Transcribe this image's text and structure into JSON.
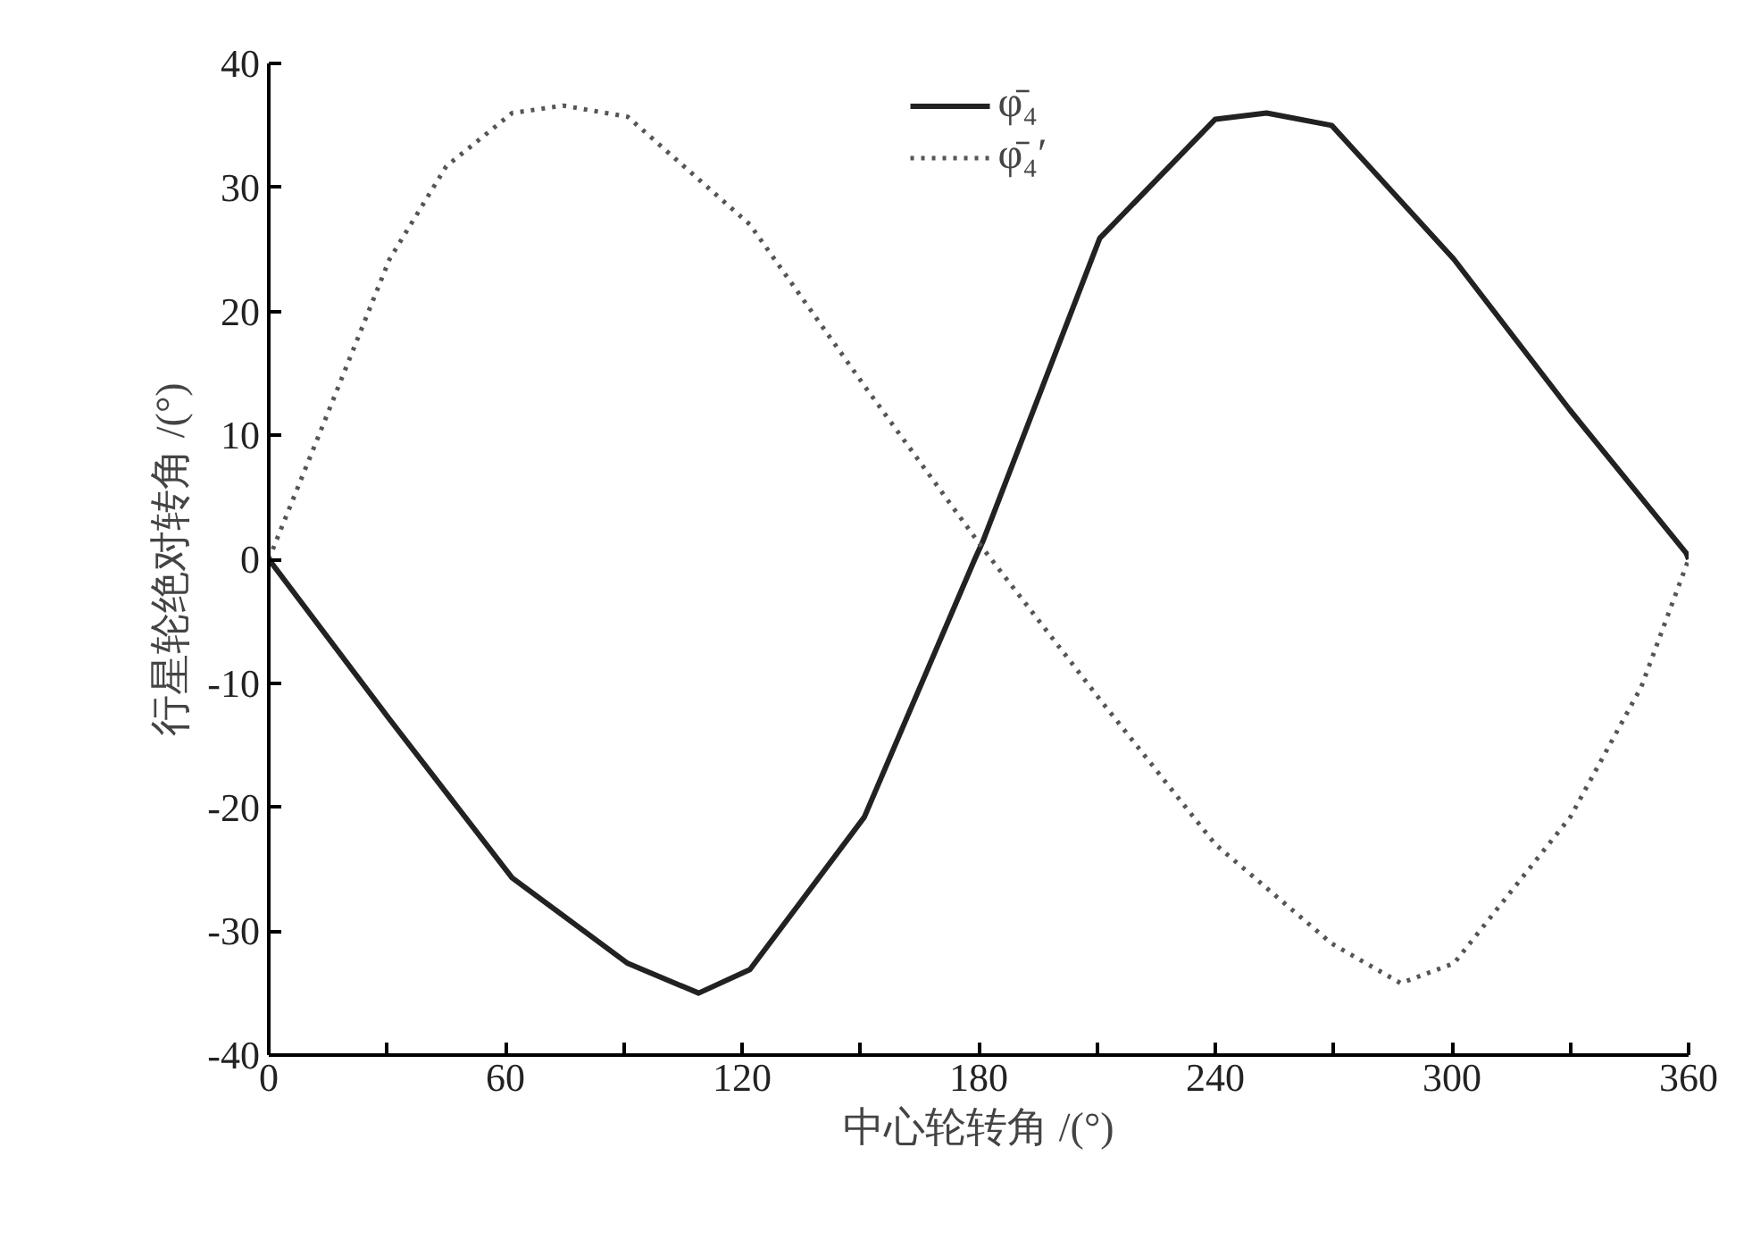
{
  "chart_data": {
    "type": "line",
    "xlabel": "中心轮转角 /(°)",
    "ylabel": "行星轮绝对转角 /(°)",
    "xlim": [
      0,
      360
    ],
    "xticks": [
      0,
      {
        "value": 30,
        "label": null
      },
      60,
      {
        "value": 90,
        "label": null
      },
      120,
      {
        "value": 150,
        "label": null
      },
      180,
      {
        "value": 210,
        "label": null
      },
      240,
      {
        "value": 270,
        "label": null
      },
      300,
      {
        "value": 330,
        "label": null
      },
      360
    ],
    "ylim": [
      -40,
      40
    ],
    "yticks": [
      -40,
      -30,
      -20,
      -10,
      0,
      10,
      20,
      30,
      40
    ],
    "grid": false,
    "legend": "top",
    "marker": "none",
    "series": [
      {
        "name": "φ̄₄",
        "color": "#222222",
        "line_style": "solid",
        "x": [
          0,
          30.6,
          61.7,
          91,
          109,
          122,
          151,
          179,
          181,
          210.7,
          240,
          253,
          269.5,
          300.5,
          330,
          359.4,
          360
        ],
        "values": [
          0,
          -12.9,
          -25.7,
          -32.6,
          -35,
          -33.1,
          -20.8,
          0,
          1.4,
          25.9,
          35.5,
          36,
          35,
          24.2,
          12,
          0.5,
          0
        ]
      },
      {
        "name": "φ̄₄′",
        "color": "#555555",
        "line_style": "dotted",
        "x": [
          0,
          12.7,
          30.6,
          45,
          61.7,
          74.6,
          91,
          122,
          151,
          181,
          210.7,
          240,
          269.5,
          287,
          300.5,
          330,
          348,
          360
        ],
        "values": [
          0,
          10,
          24.2,
          31.7,
          36,
          36.6,
          35.7,
          27,
          14,
          0.9,
          -11.3,
          -23,
          -31,
          -34.2,
          -32.6,
          -20.8,
          -10.3,
          0
        ]
      }
    ]
  }
}
